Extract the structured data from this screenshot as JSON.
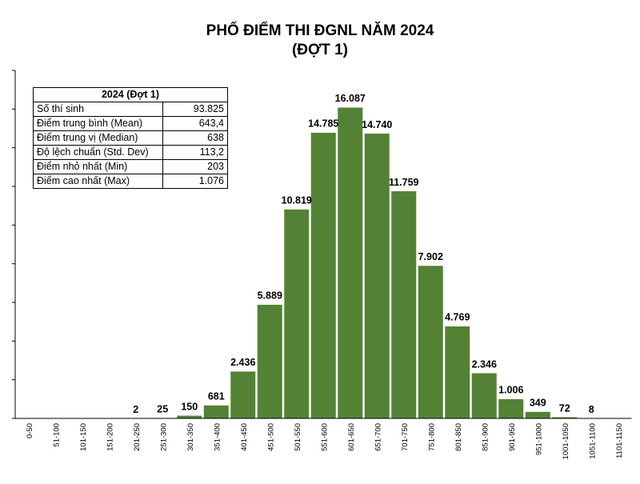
{
  "chart_data": {
    "type": "bar",
    "title": "PHỔ ĐIỂM THI ĐGNL NĂM 2024",
    "subtitle": "(ĐỢT 1)",
    "categories": [
      "0-50",
      "51-100",
      "101-150",
      "151-200",
      "201-250",
      "251-300",
      "301-350",
      "351-400",
      "401-450",
      "451-500",
      "501-550",
      "551-600",
      "601-650",
      "651-700",
      "701-750",
      "751-800",
      "801-850",
      "851-900",
      "901-950",
      "951-1000",
      "1001-1050",
      "1051-1100",
      "1101-1150"
    ],
    "values": [
      0,
      0,
      0,
      0,
      2,
      25,
      150,
      681,
      2436,
      5889,
      10819,
      14785,
      16087,
      14740,
      11759,
      7902,
      4769,
      2346,
      1006,
      349,
      72,
      8,
      0
    ],
    "data_labels": [
      "",
      "",
      "",
      "",
      "2",
      "25",
      "150",
      "681",
      "2.436",
      "5.889",
      "10.819",
      "14.785",
      "16.087",
      "14.740",
      "11.759",
      "7.902",
      "4.769",
      "2.346",
      "1.006",
      "349",
      "72",
      "8",
      ""
    ],
    "ylim": [
      0,
      18000
    ],
    "bar_color": "#548235",
    "grid": false,
    "legend": "none"
  },
  "stats_table": {
    "header": "2024 (Đợt 1)",
    "rows": [
      {
        "label": "Số thí sinh",
        "value": "93.825"
      },
      {
        "label": "Điểm trung bình (Mean)",
        "value": "643,4"
      },
      {
        "label": "Điểm trung vị (Median)",
        "value": "638"
      },
      {
        "label": "Độ lệch chuẩn (Std. Dev)",
        "value": "113,2"
      },
      {
        "label": "Điểm nhỏ nhất (Min)",
        "value": "203"
      },
      {
        "label": "Điểm cao nhất (Max)",
        "value": "1.076"
      }
    ]
  }
}
